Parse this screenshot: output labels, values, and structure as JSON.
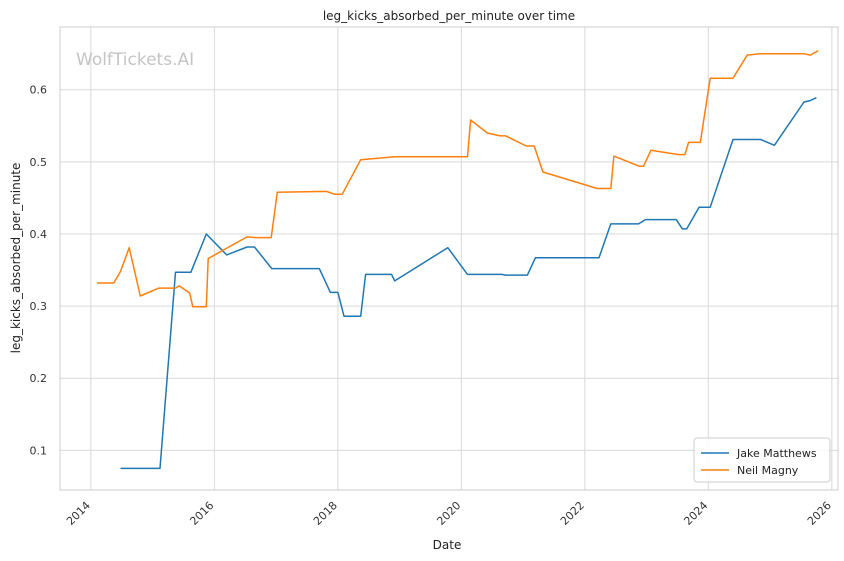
{
  "chart_data": {
    "type": "line",
    "title": "leg_kicks_absorbed_per_minute over time",
    "xlabel": "Date",
    "ylabel": "leg_kicks_absorbed_per_minute",
    "watermark": "WolfTickets.AI",
    "xlim": [
      2013.5,
      2026.1
    ],
    "ylim": [
      0.045,
      0.687
    ],
    "x_ticks": [
      2014,
      2016,
      2018,
      2020,
      2022,
      2024,
      2026
    ],
    "x_tick_labels": [
      "2014",
      "2016",
      "2018",
      "2020",
      "2022",
      "2024",
      "2026"
    ],
    "y_ticks": [
      0.1,
      0.2,
      0.3,
      0.4,
      0.5,
      0.6
    ],
    "y_tick_labels": [
      "0.1",
      "0.2",
      "0.3",
      "0.4",
      "0.5",
      "0.6"
    ],
    "grid": true,
    "legend_position": "bottom-right",
    "colors": {
      "Jake Matthews": "#1f77b4",
      "Neil Magny": "#ff7f0e"
    },
    "series": [
      {
        "name": "Jake Matthews",
        "color": "#1f77b4",
        "points": [
          [
            2014.48,
            0.075
          ],
          [
            2015.12,
            0.075
          ],
          [
            2015.37,
            0.347
          ],
          [
            2015.62,
            0.347
          ],
          [
            2015.87,
            0.4
          ],
          [
            2016.2,
            0.371
          ],
          [
            2016.53,
            0.382
          ],
          [
            2016.65,
            0.382
          ],
          [
            2016.93,
            0.352
          ],
          [
            2017.7,
            0.352
          ],
          [
            2017.88,
            0.319
          ],
          [
            2018.0,
            0.319
          ],
          [
            2018.1,
            0.286
          ],
          [
            2018.37,
            0.286
          ],
          [
            2018.45,
            0.344
          ],
          [
            2018.87,
            0.344
          ],
          [
            2018.92,
            0.335
          ],
          [
            2019.78,
            0.381
          ],
          [
            2020.1,
            0.344
          ],
          [
            2020.65,
            0.344
          ],
          [
            2020.72,
            0.343
          ],
          [
            2021.07,
            0.343
          ],
          [
            2021.2,
            0.367
          ],
          [
            2022.23,
            0.367
          ],
          [
            2022.42,
            0.414
          ],
          [
            2022.87,
            0.414
          ],
          [
            2022.98,
            0.42
          ],
          [
            2023.48,
            0.42
          ],
          [
            2023.58,
            0.407
          ],
          [
            2023.65,
            0.407
          ],
          [
            2023.85,
            0.437
          ],
          [
            2024.03,
            0.437
          ],
          [
            2024.4,
            0.531
          ],
          [
            2024.85,
            0.531
          ],
          [
            2025.07,
            0.523
          ],
          [
            2025.55,
            0.583
          ],
          [
            2025.65,
            0.585
          ],
          [
            2025.75,
            0.589
          ]
        ]
      },
      {
        "name": "Neil Magny",
        "color": "#ff7f0e",
        "points": [
          [
            2014.1,
            0.332
          ],
          [
            2014.37,
            0.332
          ],
          [
            2014.48,
            0.348
          ],
          [
            2014.62,
            0.381
          ],
          [
            2014.8,
            0.314
          ],
          [
            2015.1,
            0.325
          ],
          [
            2015.37,
            0.325
          ],
          [
            2015.43,
            0.328
          ],
          [
            2015.6,
            0.318
          ],
          [
            2015.65,
            0.299
          ],
          [
            2015.87,
            0.299
          ],
          [
            2015.9,
            0.366
          ],
          [
            2016.53,
            0.396
          ],
          [
            2016.68,
            0.395
          ],
          [
            2016.92,
            0.395
          ],
          [
            2017.02,
            0.458
          ],
          [
            2017.82,
            0.459
          ],
          [
            2017.95,
            0.455
          ],
          [
            2018.07,
            0.455
          ],
          [
            2018.37,
            0.503
          ],
          [
            2018.92,
            0.507
          ],
          [
            2020.1,
            0.507
          ],
          [
            2020.15,
            0.558
          ],
          [
            2020.42,
            0.54
          ],
          [
            2020.63,
            0.536
          ],
          [
            2020.72,
            0.536
          ],
          [
            2021.05,
            0.522
          ],
          [
            2021.18,
            0.522
          ],
          [
            2021.32,
            0.486
          ],
          [
            2022.2,
            0.463
          ],
          [
            2022.42,
            0.463
          ],
          [
            2022.47,
            0.508
          ],
          [
            2022.88,
            0.494
          ],
          [
            2022.95,
            0.494
          ],
          [
            2023.07,
            0.516
          ],
          [
            2023.52,
            0.51
          ],
          [
            2023.62,
            0.51
          ],
          [
            2023.68,
            0.527
          ],
          [
            2023.87,
            0.527
          ],
          [
            2024.03,
            0.616
          ],
          [
            2024.4,
            0.616
          ],
          [
            2024.63,
            0.648
          ],
          [
            2024.83,
            0.65
          ],
          [
            2025.55,
            0.65
          ],
          [
            2025.65,
            0.648
          ],
          [
            2025.78,
            0.654
          ]
        ]
      }
    ]
  }
}
